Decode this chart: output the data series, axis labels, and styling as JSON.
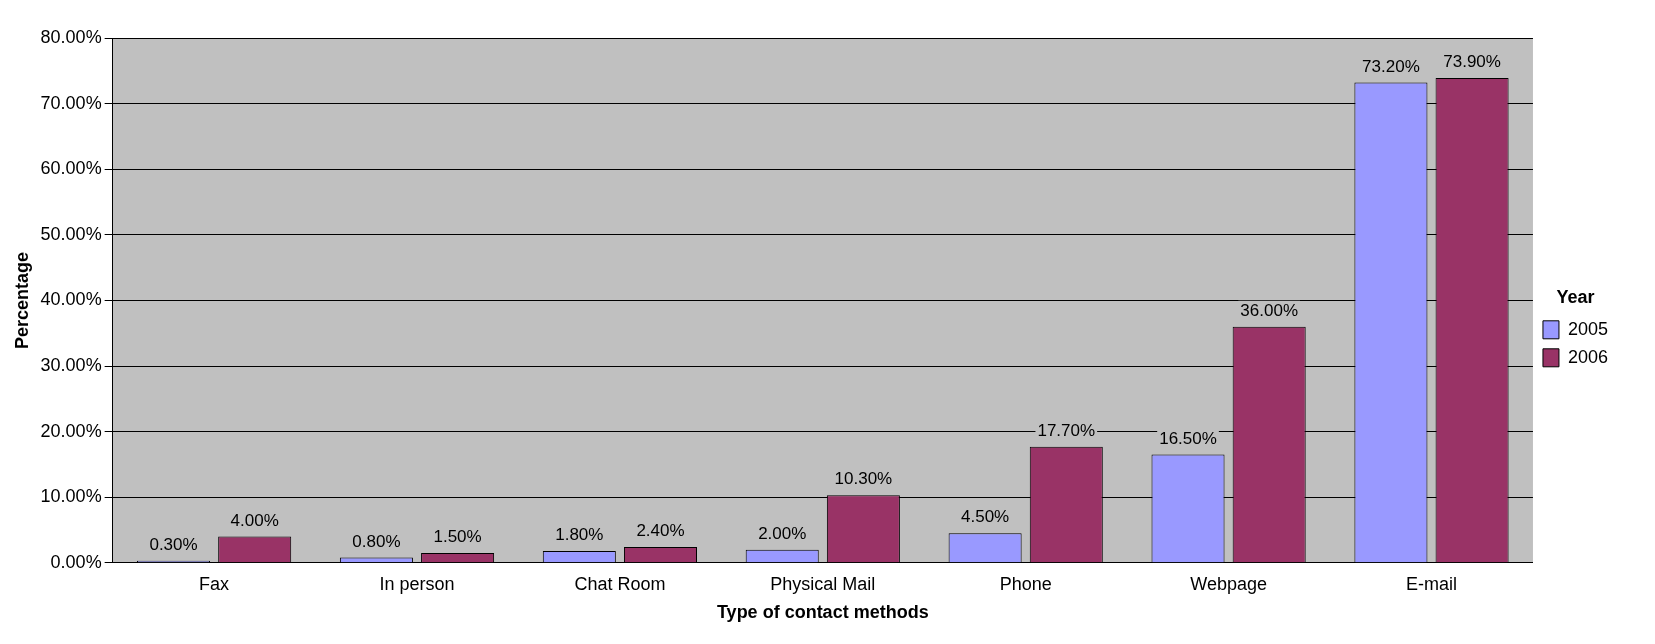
{
  "chart_data": {
    "type": "bar",
    "xlabel": "Type of contact methods",
    "ylabel": "Percentage",
    "legend_title": "Year",
    "categories": [
      "Fax",
      "In person",
      "Chat Room",
      "Physical Mail",
      "Phone",
      "Webpage",
      "E-mail"
    ],
    "series": [
      {
        "name": "2005",
        "color": "#9999ff",
        "values": [
          0.3,
          0.8,
          1.8,
          2.0,
          4.5,
          16.5,
          73.2
        ],
        "value_labels": [
          "0.30%",
          "0.80%",
          "1.80%",
          "2.00%",
          "4.50%",
          "16.50%",
          "73.20%"
        ]
      },
      {
        "name": "2006",
        "color": "#993366",
        "values": [
          4.0,
          1.5,
          2.4,
          10.3,
          17.7,
          36.0,
          73.9
        ],
        "value_labels": [
          "4.00%",
          "1.50%",
          "2.40%",
          "10.30%",
          "17.70%",
          "36.00%",
          "73.90%"
        ]
      }
    ],
    "ylim": [
      0,
      80
    ],
    "yticks": [
      {
        "value": 0,
        "label": "0.00%"
      },
      {
        "value": 10,
        "label": "10.00%"
      },
      {
        "value": 20,
        "label": "20.00%"
      },
      {
        "value": 30,
        "label": "30.00%"
      },
      {
        "value": 40,
        "label": "40.00%"
      },
      {
        "value": 50,
        "label": "50.00%"
      },
      {
        "value": 60,
        "label": "60.00%"
      },
      {
        "value": 70,
        "label": "70.00%"
      },
      {
        "value": 80,
        "label": "80.00%"
      }
    ],
    "grid": "y",
    "legend": "right"
  }
}
